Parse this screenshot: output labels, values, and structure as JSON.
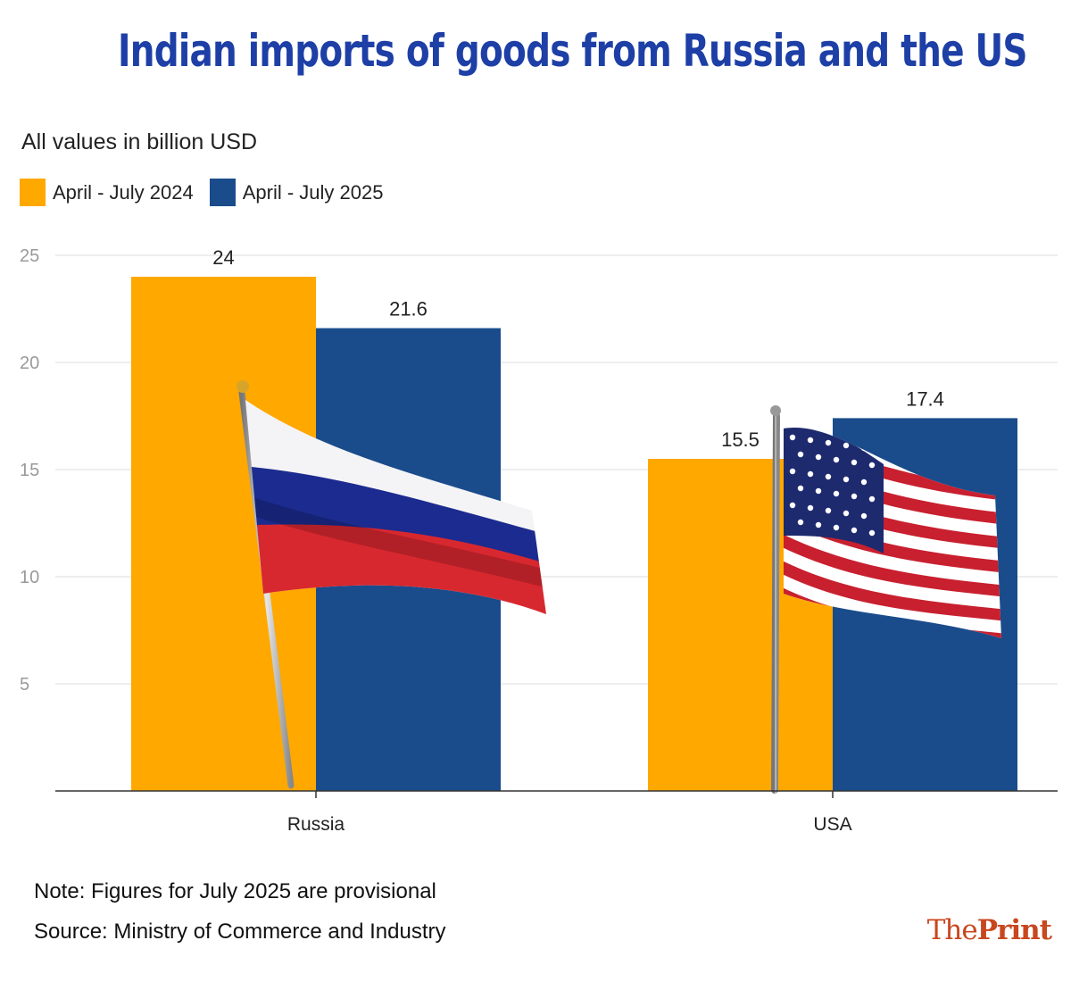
{
  "title": "Indian imports of goods from Russia and the US",
  "subtitle": "All values in billion USD",
  "colors": {
    "series_2024": "#FFA800",
    "series_2025": "#1A4C8C",
    "title": "#1d3fa6",
    "brand": "#c8471f"
  },
  "chart_data": {
    "type": "bar",
    "title": "Indian imports of goods from Russia and the US",
    "ylabel": "All values in billion USD",
    "categories": [
      "Russia",
      "USA"
    ],
    "series": [
      {
        "name": "April - July 2024",
        "values": [
          24,
          15.5
        ],
        "labels": [
          "24",
          "15.5"
        ]
      },
      {
        "name": "April - July 2025",
        "values": [
          21.6,
          17.4
        ],
        "labels": [
          "21.6",
          "17.4"
        ]
      }
    ],
    "yticks": [
      5,
      10,
      15,
      20,
      25
    ],
    "ylim": [
      0,
      25
    ],
    "grid": true,
    "legend": "top-left"
  },
  "flags": {
    "russia": "russia-flag",
    "usa": "usa-flag"
  },
  "notes": {
    "note": "Note: Figures for July 2025 are provisional",
    "source": "Source: Ministry of Commerce and Industry"
  },
  "brand": {
    "the": "The",
    "print": "Print"
  }
}
